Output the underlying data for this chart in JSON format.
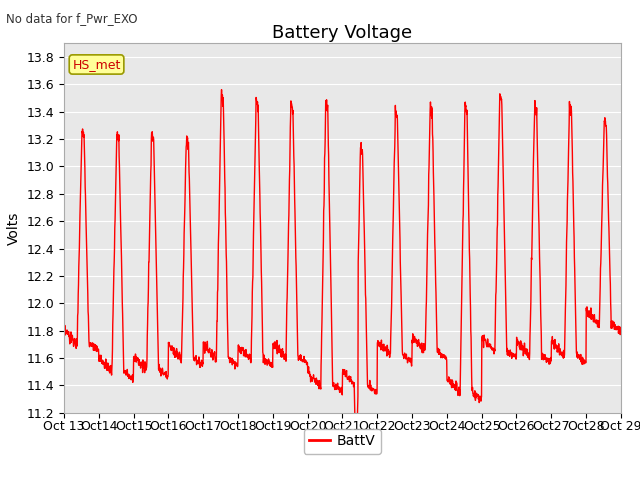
{
  "title": "Battery Voltage",
  "subtitle": "No data for f_Pwr_EXO",
  "ylabel": "Volts",
  "ylim": [
    11.2,
    13.9
  ],
  "yticks": [
    11.2,
    11.4,
    11.6,
    11.8,
    12.0,
    12.2,
    12.4,
    12.6,
    12.8,
    13.0,
    13.2,
    13.4,
    13.6,
    13.8
  ],
  "xtick_labels": [
    "Oct 13",
    "Oct14",
    "Oct15",
    "Oct16",
    "Oct17",
    "Oct18",
    "Oct19",
    "Oct20",
    "Oct21",
    "Oct22",
    "Oct23",
    "Oct24",
    "Oct25",
    "Oct26",
    "Oct27",
    "Oct28",
    "Oct 29"
  ],
  "line_color": "#ff0000",
  "line_width": 1.0,
  "legend_label": "BattV",
  "hs_met_label": "HS_met",
  "hs_met_color": "#cc0000",
  "hs_met_bg": "#ffff99",
  "hs_met_edge": "#999900",
  "background_color": "#ffffff",
  "plot_bg_color": "#e8e8e8",
  "grid_color": "#ffffff",
  "title_fontsize": 13,
  "label_fontsize": 10,
  "tick_fontsize": 9,
  "days": 16,
  "peaks": [
    13.28,
    13.25,
    13.25,
    13.22,
    13.53,
    13.49,
    13.46,
    13.47,
    13.15,
    13.4,
    13.43,
    13.44,
    13.52,
    13.45,
    13.45,
    13.35
  ],
  "lows": [
    11.65,
    11.45,
    11.47,
    11.55,
    11.55,
    11.54,
    11.56,
    11.35,
    11.35,
    11.57,
    11.6,
    11.3,
    11.6,
    11.57,
    11.57,
    11.8
  ],
  "mid_dips": [
    false,
    false,
    false,
    false,
    false,
    false,
    false,
    false,
    true,
    false,
    false,
    false,
    false,
    false,
    false,
    false
  ]
}
